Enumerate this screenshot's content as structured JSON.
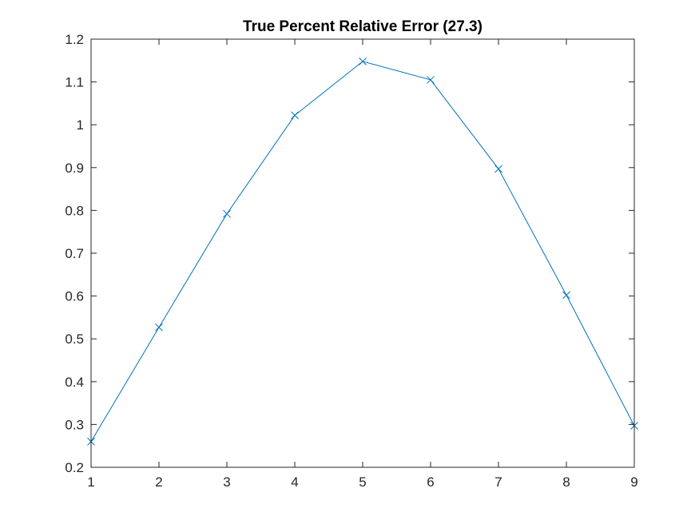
{
  "chart_data": {
    "type": "line",
    "title": "True Percent Relative Error (27.3)",
    "xlabel": "",
    "ylabel": "",
    "xlim": [
      1,
      9
    ],
    "ylim": [
      0.2,
      1.2
    ],
    "xticks": [
      1,
      2,
      3,
      4,
      5,
      6,
      7,
      8,
      9
    ],
    "yticks": [
      0.2,
      0.3,
      0.4,
      0.5,
      0.6,
      0.7,
      0.8,
      0.9,
      1,
      1.1,
      1.2
    ],
    "grid": false,
    "legend": "none",
    "series": [
      {
        "color": "#0072BD",
        "marker": "x",
        "x": [
          1,
          2,
          3,
          4,
          5,
          6,
          7,
          8,
          9
        ],
        "y": [
          0.26,
          0.527,
          0.792,
          1.022,
          1.148,
          1.105,
          0.897,
          0.602,
          0.297
        ]
      }
    ]
  }
}
